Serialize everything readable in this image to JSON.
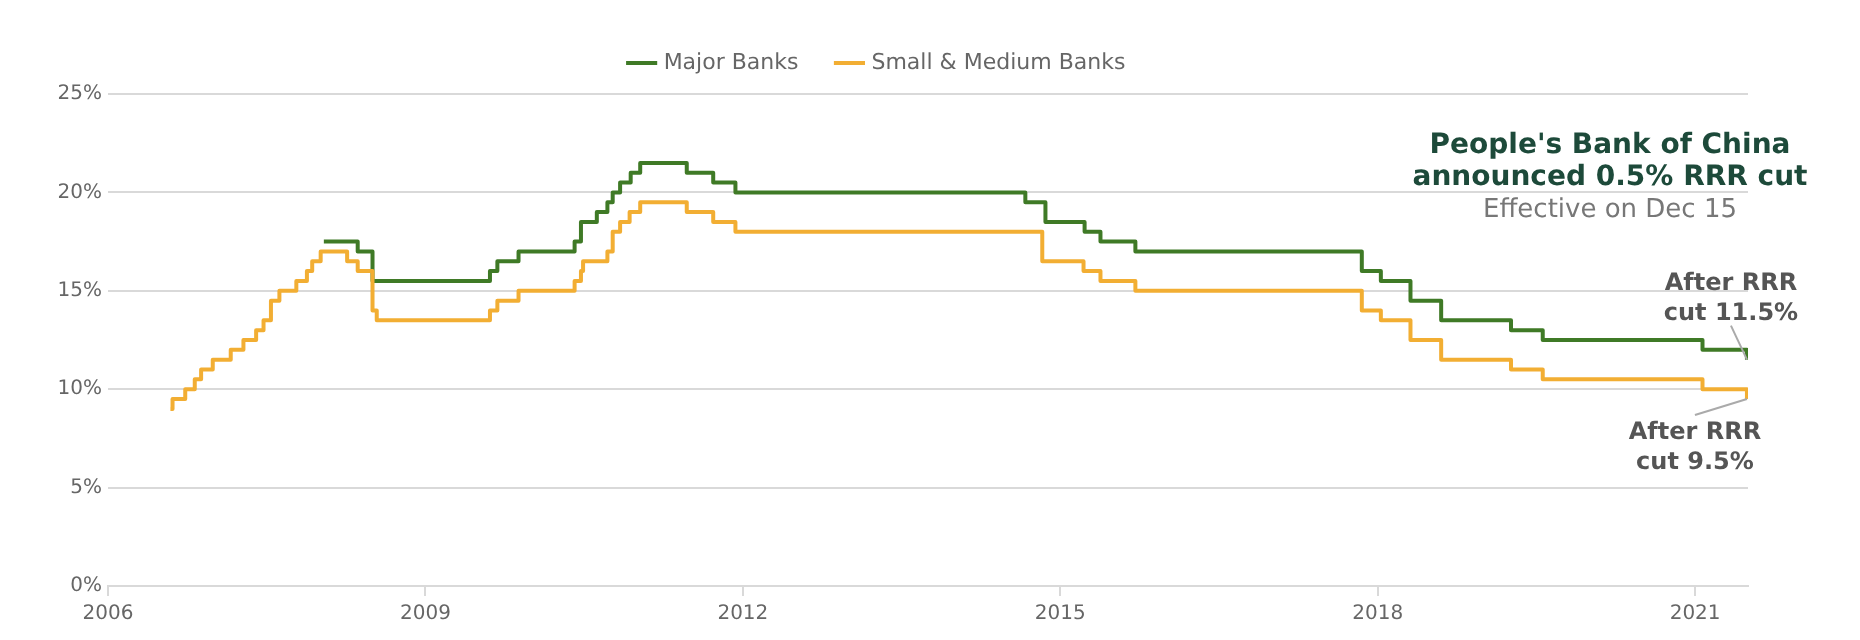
{
  "chart_data": {
    "type": "step",
    "xlim": [
      2006,
      2021.5
    ],
    "xticks": [
      2006,
      2009,
      2012,
      2015,
      2018,
      2021
    ],
    "ylim": [
      0,
      25
    ],
    "yticks": [
      {
        "value": 0,
        "label": "0%"
      },
      {
        "value": 5,
        "label": "5%"
      },
      {
        "value": 10,
        "label": "10%"
      },
      {
        "value": 15,
        "label": "15%"
      },
      {
        "value": 20,
        "label": "20%"
      },
      {
        "value": 25,
        "label": "25%"
      }
    ],
    "grid": "y",
    "legend": "top",
    "line_style": "solid",
    "marker": "none",
    "series": [
      {
        "name": "Major Banks",
        "color": "#3f7a26",
        "x": [
          2008.04,
          2008.36,
          2008.5,
          2009.61,
          2009.68,
          2009.88,
          2010.41,
          2010.47,
          2010.62,
          2010.72,
          2010.77,
          2010.84,
          2010.94,
          2011.03,
          2011.47,
          2011.72,
          2011.93,
          2014.67,
          2014.86,
          2015.23,
          2015.38,
          2015.71,
          2017.85,
          2018.03,
          2018.31,
          2018.6,
          2019.26,
          2019.56,
          2021.07,
          2021.49
        ],
        "values": [
          17.5,
          17,
          15.5,
          16,
          16.5,
          17,
          17.5,
          18.5,
          19,
          19.5,
          20,
          20.5,
          21,
          21.5,
          21,
          20.5,
          20,
          19.5,
          18.5,
          18,
          17.5,
          17,
          16,
          15.5,
          14.5,
          13.5,
          13,
          12.5,
          12,
          11.5
        ]
      },
      {
        "name": "Small & Medium Banks",
        "color": "#f2ae33",
        "x": [
          2006.59,
          2006.61,
          2006.73,
          2006.82,
          2006.88,
          2006.99,
          2007.16,
          2007.28,
          2007.4,
          2007.47,
          2007.54,
          2007.62,
          2007.78,
          2007.88,
          2007.93,
          2008.01,
          2008.26,
          2008.36,
          2008.5,
          2008.54,
          2009.61,
          2009.68,
          2009.88,
          2010.41,
          2010.47,
          2010.49,
          2010.72,
          2010.77,
          2010.84,
          2010.93,
          2011.03,
          2011.47,
          2011.72,
          2011.93,
          2014.83,
          2015.22,
          2015.38,
          2015.71,
          2017.85,
          2018.03,
          2018.31,
          2018.6,
          2019.26,
          2019.56,
          2021.07,
          2021.49
        ],
        "values": [
          9.0,
          9.5,
          10,
          10.5,
          11,
          11.5,
          12,
          12.5,
          13,
          13.5,
          14.5,
          15,
          15.5,
          16,
          16.5,
          17,
          16.5,
          16,
          14,
          13.5,
          14,
          14.5,
          15,
          15.5,
          16,
          16.5,
          17,
          18,
          18.5,
          19,
          19.5,
          19,
          18.5,
          18,
          16.5,
          16,
          15.5,
          15,
          14,
          13.5,
          12.5,
          11.5,
          11,
          10.5,
          10,
          9.5
        ]
      }
    ],
    "annotations": [
      "People's Bank of China announced 0.5% RRR cut",
      "Effective on Dec 15",
      {
        "text": "After RRR cut 11.5%",
        "x": 2021.49,
        "y": 11.5
      },
      {
        "text": "After RRR cut 9.5%",
        "x": 2021.49,
        "y": 9.5
      }
    ]
  }
}
